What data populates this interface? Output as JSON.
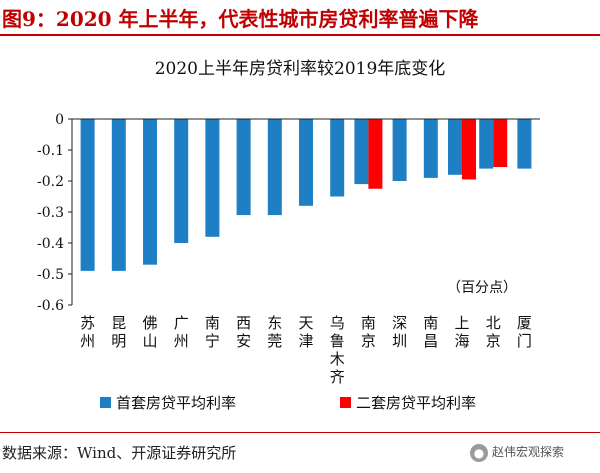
{
  "figure": {
    "title": "图9：2020 年上半年，代表性城市房贷利率普遍下降",
    "source": "数据来源：Wind、开源证券研究所",
    "badge_icon": "wechat-icon",
    "badge_text": "赵伟宏观探索"
  },
  "colors": {
    "series1": "#1f7fc4",
    "series2": "#ff0000",
    "accent": "#c00000"
  },
  "chart_data": {
    "type": "bar",
    "title": "2020上半年房贷利率较2019年底变化",
    "unit_note": "（百分点）",
    "categories": [
      "苏州",
      "昆明",
      "佛山",
      "广州",
      "南宁",
      "西安",
      "东莞",
      "天津",
      "乌鲁木齐",
      "南京",
      "深圳",
      "南昌",
      "上海",
      "北京",
      "厦门"
    ],
    "series": [
      {
        "name": "首套房贷平均利率",
        "values": [
          -0.49,
          -0.49,
          -0.47,
          -0.4,
          -0.38,
          -0.31,
          -0.31,
          -0.28,
          -0.25,
          -0.21,
          -0.2,
          -0.19,
          -0.18,
          -0.16,
          -0.16
        ]
      },
      {
        "name": "二套房贷平均利率",
        "values": [
          null,
          null,
          null,
          null,
          null,
          null,
          null,
          null,
          null,
          -0.225,
          null,
          null,
          -0.195,
          -0.155,
          null
        ]
      }
    ],
    "ylim": [
      -0.6,
      0
    ],
    "yticks": [
      0,
      -0.1,
      -0.2,
      -0.3,
      -0.4,
      -0.5,
      -0.6
    ],
    "ytick_labels": [
      "0",
      "-0.1",
      "-0.2",
      "-0.3",
      "-0.4",
      "-0.5",
      "-0.6"
    ],
    "grid": false,
    "legend_position": "bottom"
  }
}
